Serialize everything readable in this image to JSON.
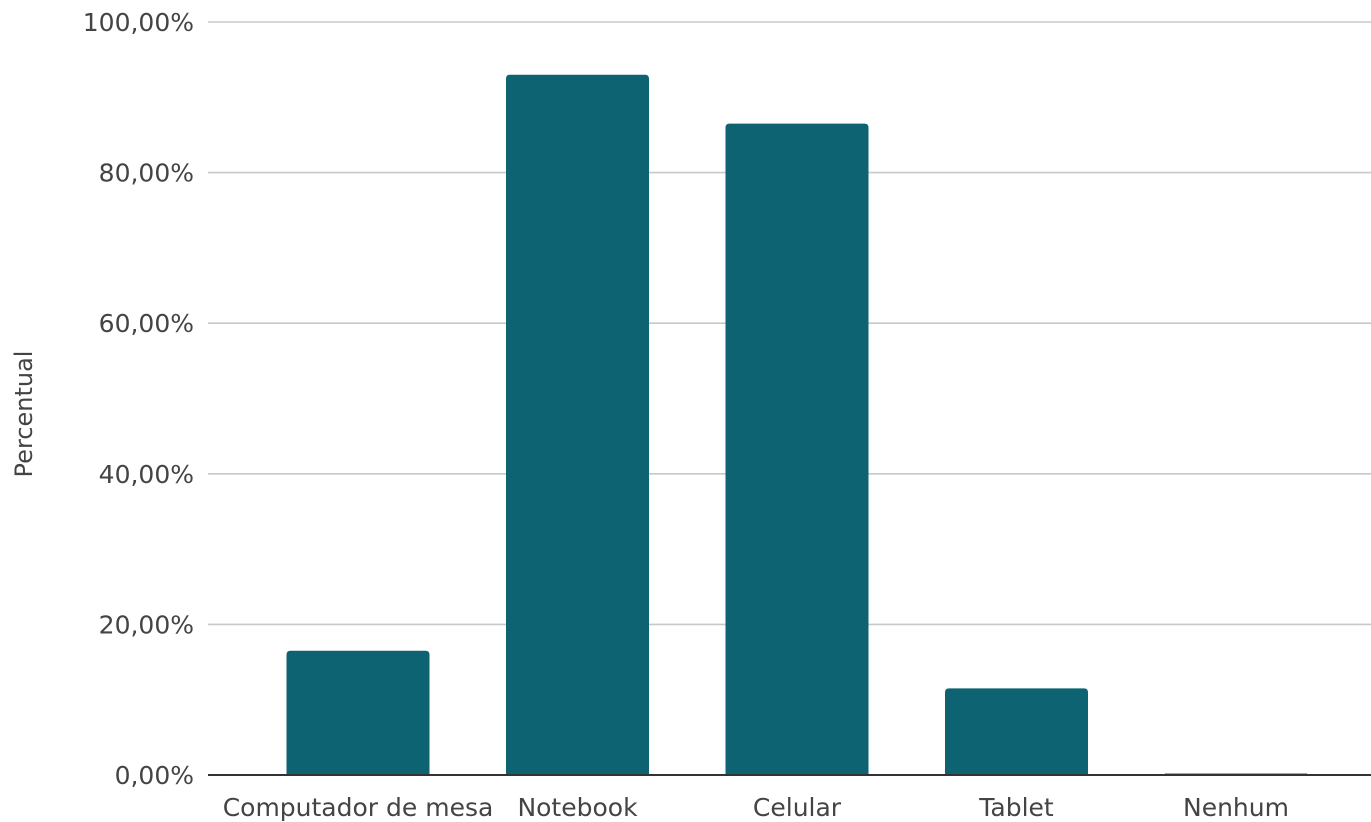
{
  "chart_data": {
    "type": "bar",
    "title": "",
    "xlabel": "",
    "ylabel": "Percentual",
    "categories": [
      "Computador de mesa",
      "Notebook",
      "Celular",
      "Tablet",
      "Nenhum"
    ],
    "values": [
      16.5,
      93.0,
      86.5,
      11.5,
      0.0
    ],
    "ylim": [
      0,
      100
    ],
    "yticks": [
      0,
      20,
      40,
      60,
      80,
      100
    ],
    "ytick_labels": [
      "0,00%",
      "20,00%",
      "40,00%",
      "60,00%",
      "80,00%",
      "100,00%"
    ],
    "grid": true,
    "legend": "none",
    "bar_color": "#0e6372"
  }
}
